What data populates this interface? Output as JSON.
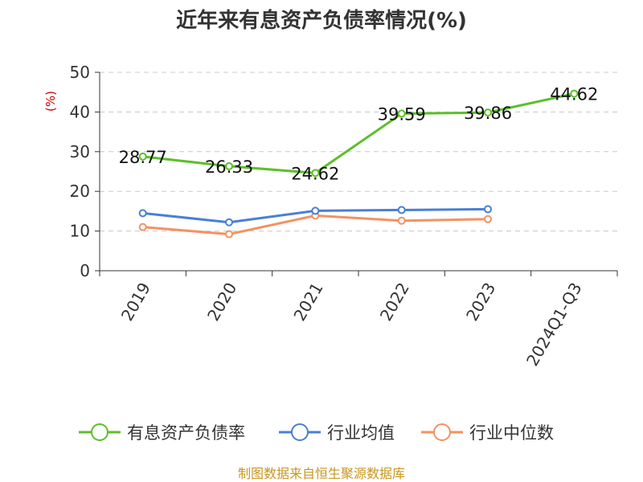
{
  "chart_data": {
    "type": "line",
    "title": "近年来有息资产负债率情况(%)",
    "ylabel": "(%)",
    "xlabel": "",
    "ylim": [
      0,
      50
    ],
    "yticks": [
      0,
      10,
      20,
      30,
      40,
      50
    ],
    "grid": true,
    "legend_position": "bottom",
    "categories": [
      "2019",
      "2020",
      "2021",
      "2022",
      "2023",
      "2024Q1-Q3"
    ],
    "series": [
      {
        "name": "有息资产负债率",
        "color": "#5cbf2a",
        "values": [
          28.77,
          26.33,
          24.62,
          39.59,
          39.86,
          44.62
        ],
        "labels": [
          "28.77",
          "26.33",
          "24.62",
          "39.59",
          "39.86",
          "44.62"
        ]
      },
      {
        "name": "行业均值",
        "color": "#4a7fd4",
        "values": [
          14.5,
          12.2,
          15.1,
          15.3,
          15.5,
          null
        ]
      },
      {
        "name": "行业中位数",
        "color": "#f39262",
        "values": [
          11.0,
          9.2,
          13.9,
          12.6,
          13.0,
          null
        ]
      }
    ],
    "source": "制图数据来自恒生聚源数据库"
  }
}
